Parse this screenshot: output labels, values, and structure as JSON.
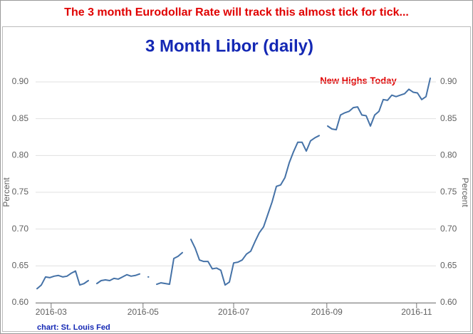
{
  "header": "The 3 month Eurodollar Rate will track this almost tick for tick...",
  "source": "chart: St. Louis Fed",
  "chart_data": {
    "type": "line",
    "title": "3 Month Libor (daily)",
    "y_label": "Percent",
    "y2_label": "Percent",
    "annotation": "New Highs Today",
    "grid": true,
    "xlim": [
      0,
      92
    ],
    "xticks": [
      {
        "value": 3.3,
        "label": "2016-03"
      },
      {
        "value": 24.8,
        "label": "2016-05"
      },
      {
        "value": 46,
        "label": "2016-07"
      },
      {
        "value": 67.8,
        "label": "2016-09"
      },
      {
        "value": 88.8,
        "label": "2016-11"
      }
    ],
    "ylim": [
      0.6,
      0.9
    ],
    "yticks": [
      {
        "value": 0.6,
        "label": "0.60"
      },
      {
        "value": 0.65,
        "label": "0.65"
      },
      {
        "value": 0.7,
        "label": "0.70"
      },
      {
        "value": 0.75,
        "label": "0.75"
      },
      {
        "value": 0.8,
        "label": "0.80"
      },
      {
        "value": 0.85,
        "label": "0.85"
      },
      {
        "value": 0.9,
        "label": "0.90"
      }
    ],
    "y2lim": [
      0.6,
      0.9
    ],
    "y2ticks": [
      {
        "value": 0.6,
        "label": "0.60"
      },
      {
        "value": 0.65,
        "label": "0.65"
      },
      {
        "value": 0.7,
        "label": "0.70"
      },
      {
        "value": 0.75,
        "label": "0.75"
      },
      {
        "value": 0.8,
        "label": "0.80"
      },
      {
        "value": 0.85,
        "label": "0.85"
      },
      {
        "value": 0.9,
        "label": "0.90"
      }
    ],
    "series": [
      {
        "color": "#4572a7",
        "values": [
          0.619,
          0.624,
          0.635,
          0.634,
          0.636,
          0.637,
          0.635,
          0.636,
          0.64,
          0.643,
          0.624,
          0.626,
          0.63,
          null,
          0.626,
          0.63,
          0.631,
          0.63,
          0.633,
          0.632,
          0.635,
          0.638,
          0.636,
          0.637,
          0.639,
          null,
          0.635,
          null,
          0.625,
          0.627,
          0.626,
          0.625,
          0.66,
          0.663,
          0.668,
          null,
          0.686,
          0.674,
          0.658,
          0.656,
          0.656,
          0.646,
          0.647,
          0.644,
          0.624,
          0.628,
          0.654,
          0.655,
          0.658,
          0.666,
          0.67,
          0.683,
          0.695,
          0.703,
          0.72,
          0.737,
          0.758,
          0.76,
          0.77,
          0.79,
          0.805,
          0.818,
          0.818,
          0.806,
          0.82,
          0.824,
          0.827,
          null,
          0.84,
          0.836,
          0.835,
          0.855,
          0.858,
          0.86,
          0.865,
          0.866,
          0.855,
          0.854,
          0.84,
          0.855,
          0.86,
          0.876,
          0.875,
          0.882,
          0.88,
          0.882,
          0.884,
          0.89,
          0.886,
          0.885,
          0.876,
          0.88,
          0.905
        ]
      }
    ]
  }
}
